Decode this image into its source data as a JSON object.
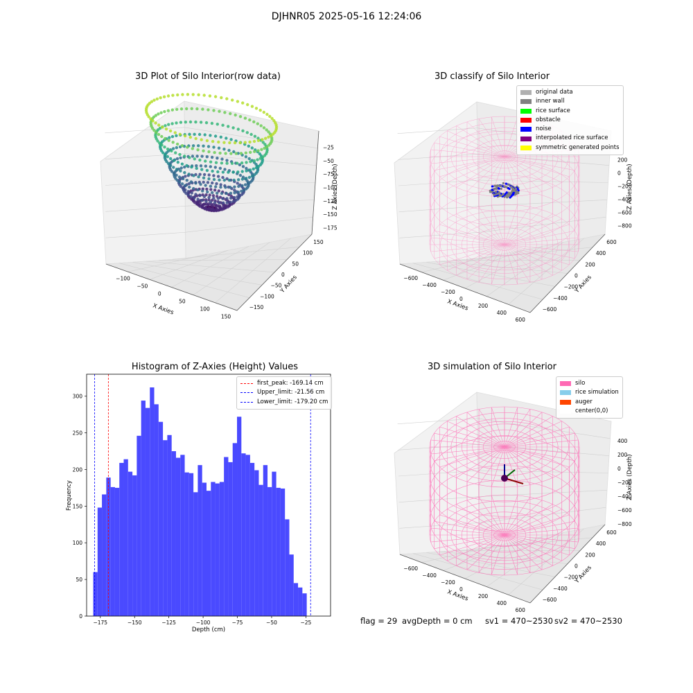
{
  "suptitle": "DJHNR05 2025-05-16 12:24:06",
  "footer": {
    "flag": "flag = 29",
    "avg_depth": "avgDepth = 0 cm",
    "sv1": "sv1 = 470~2530",
    "sv2": "sv2 = 470~2530"
  },
  "colors": {
    "histogram_bar": "#4a4aff",
    "first_peak": "#ff0000",
    "limit": "#0000ff",
    "silo_wire": "#ff69b4",
    "viridis_low": "#440154",
    "viridis_high": "#fde725"
  },
  "chart_data": [
    {
      "type": "scatter",
      "title": "3D Plot of Silo Interior(row data)",
      "xlabel": "X Axies",
      "ylabel": "Y Axies",
      "zlabel": "Z Axies (Depth)",
      "xticks": [
        "−100",
        "−50",
        "0",
        "50",
        "100",
        "150"
      ],
      "yticks": [
        "150",
        "100",
        "50",
        "0",
        "−50",
        "−100",
        "−150"
      ],
      "zticks": [
        "−25",
        "−50",
        "−75",
        "−100",
        "−125",
        "−150",
        "−175"
      ],
      "xlim": [
        -150,
        150
      ],
      "ylim": [
        -150,
        150
      ],
      "zlim": [
        -185,
        -10
      ],
      "colormap": "viridis",
      "grid": true
    },
    {
      "type": "scatter",
      "title": "3D classify of Silo Interior",
      "xlabel": "X Axies",
      "ylabel": "Y Axies",
      "zlabel": "Z Axies (Depth)",
      "xticks": [
        "−600",
        "−400",
        "−200",
        "0",
        "200",
        "400",
        "600"
      ],
      "yticks": [
        "600",
        "400",
        "200",
        "0",
        "−200",
        "−400",
        "−600"
      ],
      "zticks": [
        "200",
        "0",
        "−200",
        "−400",
        "−600",
        "−800"
      ],
      "legend": [
        {
          "label": "original data",
          "color": "#b0b0b0"
        },
        {
          "label": "inner wall",
          "color": "#808080"
        },
        {
          "label": "rice surface",
          "color": "#00ff00"
        },
        {
          "label": "obstacle",
          "color": "#ff0000"
        },
        {
          "label": "noise",
          "color": "#0000ff"
        },
        {
          "label": "interpolated rice surface",
          "color": "#800080"
        },
        {
          "label": "symmetric generated points",
          "color": "#ffff00"
        }
      ],
      "legend_loc": "upper right",
      "grid": true
    },
    {
      "type": "bar",
      "title": "Histogram of Z-Axies (Height) Values",
      "xlabel": "Depth (cm)",
      "ylabel": "Frequency",
      "xlim": [
        -185,
        -7
      ],
      "ylim": [
        0,
        330
      ],
      "xticks": [
        -175,
        -150,
        -125,
        -100,
        -75,
        -50,
        -25
      ],
      "xtick_labels": [
        "−175",
        "−150",
        "−125",
        "−100",
        "−75",
        "−50",
        "−25"
      ],
      "yticks": [
        0,
        50,
        100,
        150,
        200,
        250,
        300
      ],
      "ytick_labels": [
        "0",
        "50",
        "100",
        "150",
        "200",
        "250",
        "300"
      ],
      "bin_edges_start": -180.2,
      "bin_width": 3.18,
      "values": [
        60,
        148,
        166,
        189,
        176,
        175,
        209,
        214,
        197,
        192,
        246,
        294,
        284,
        312,
        289,
        265,
        240,
        247,
        225,
        216,
        220,
        196,
        195,
        169,
        206,
        182,
        171,
        183,
        181,
        183,
        217,
        210,
        236,
        272,
        222,
        220,
        209,
        199,
        179,
        206,
        176,
        197,
        175,
        174,
        132,
        84,
        45,
        39,
        31
      ],
      "vlines": [
        {
          "label": "first_peak: -169.14 cm",
          "x": -169.14,
          "color": "#ff0000"
        },
        {
          "label": "Upper_limit: -21.56 cm",
          "x": -21.56,
          "color": "#0000ff"
        },
        {
          "label": "Lower_limit: -179.20 cm",
          "x": -179.2,
          "color": "#0000ff"
        }
      ],
      "legend_loc": "upper right"
    },
    {
      "type": "scatter",
      "title": "3D simulation of Silo Interior",
      "xlabel": "X Axies",
      "ylabel": "Y Axies",
      "zlabel": "Z Axies (Depth)",
      "xticks": [
        "−600",
        "−400",
        "−200",
        "0",
        "200",
        "400",
        "600"
      ],
      "yticks": [
        "600",
        "400",
        "200",
        "0",
        "−200",
        "−400",
        "−600"
      ],
      "zticks": [
        "400",
        "200",
        "0",
        "−200",
        "−400",
        "−600",
        "−800"
      ],
      "legend": [
        {
          "label": "silo",
          "color": "#ff69b4"
        },
        {
          "label": "rice simulation",
          "color": "#87ceeb"
        },
        {
          "label": "auger",
          "color": "#ff4500"
        },
        {
          "label": "center(0,0)",
          "color": "#ffffff"
        }
      ],
      "legend_loc": "upper right",
      "grid": true
    }
  ]
}
